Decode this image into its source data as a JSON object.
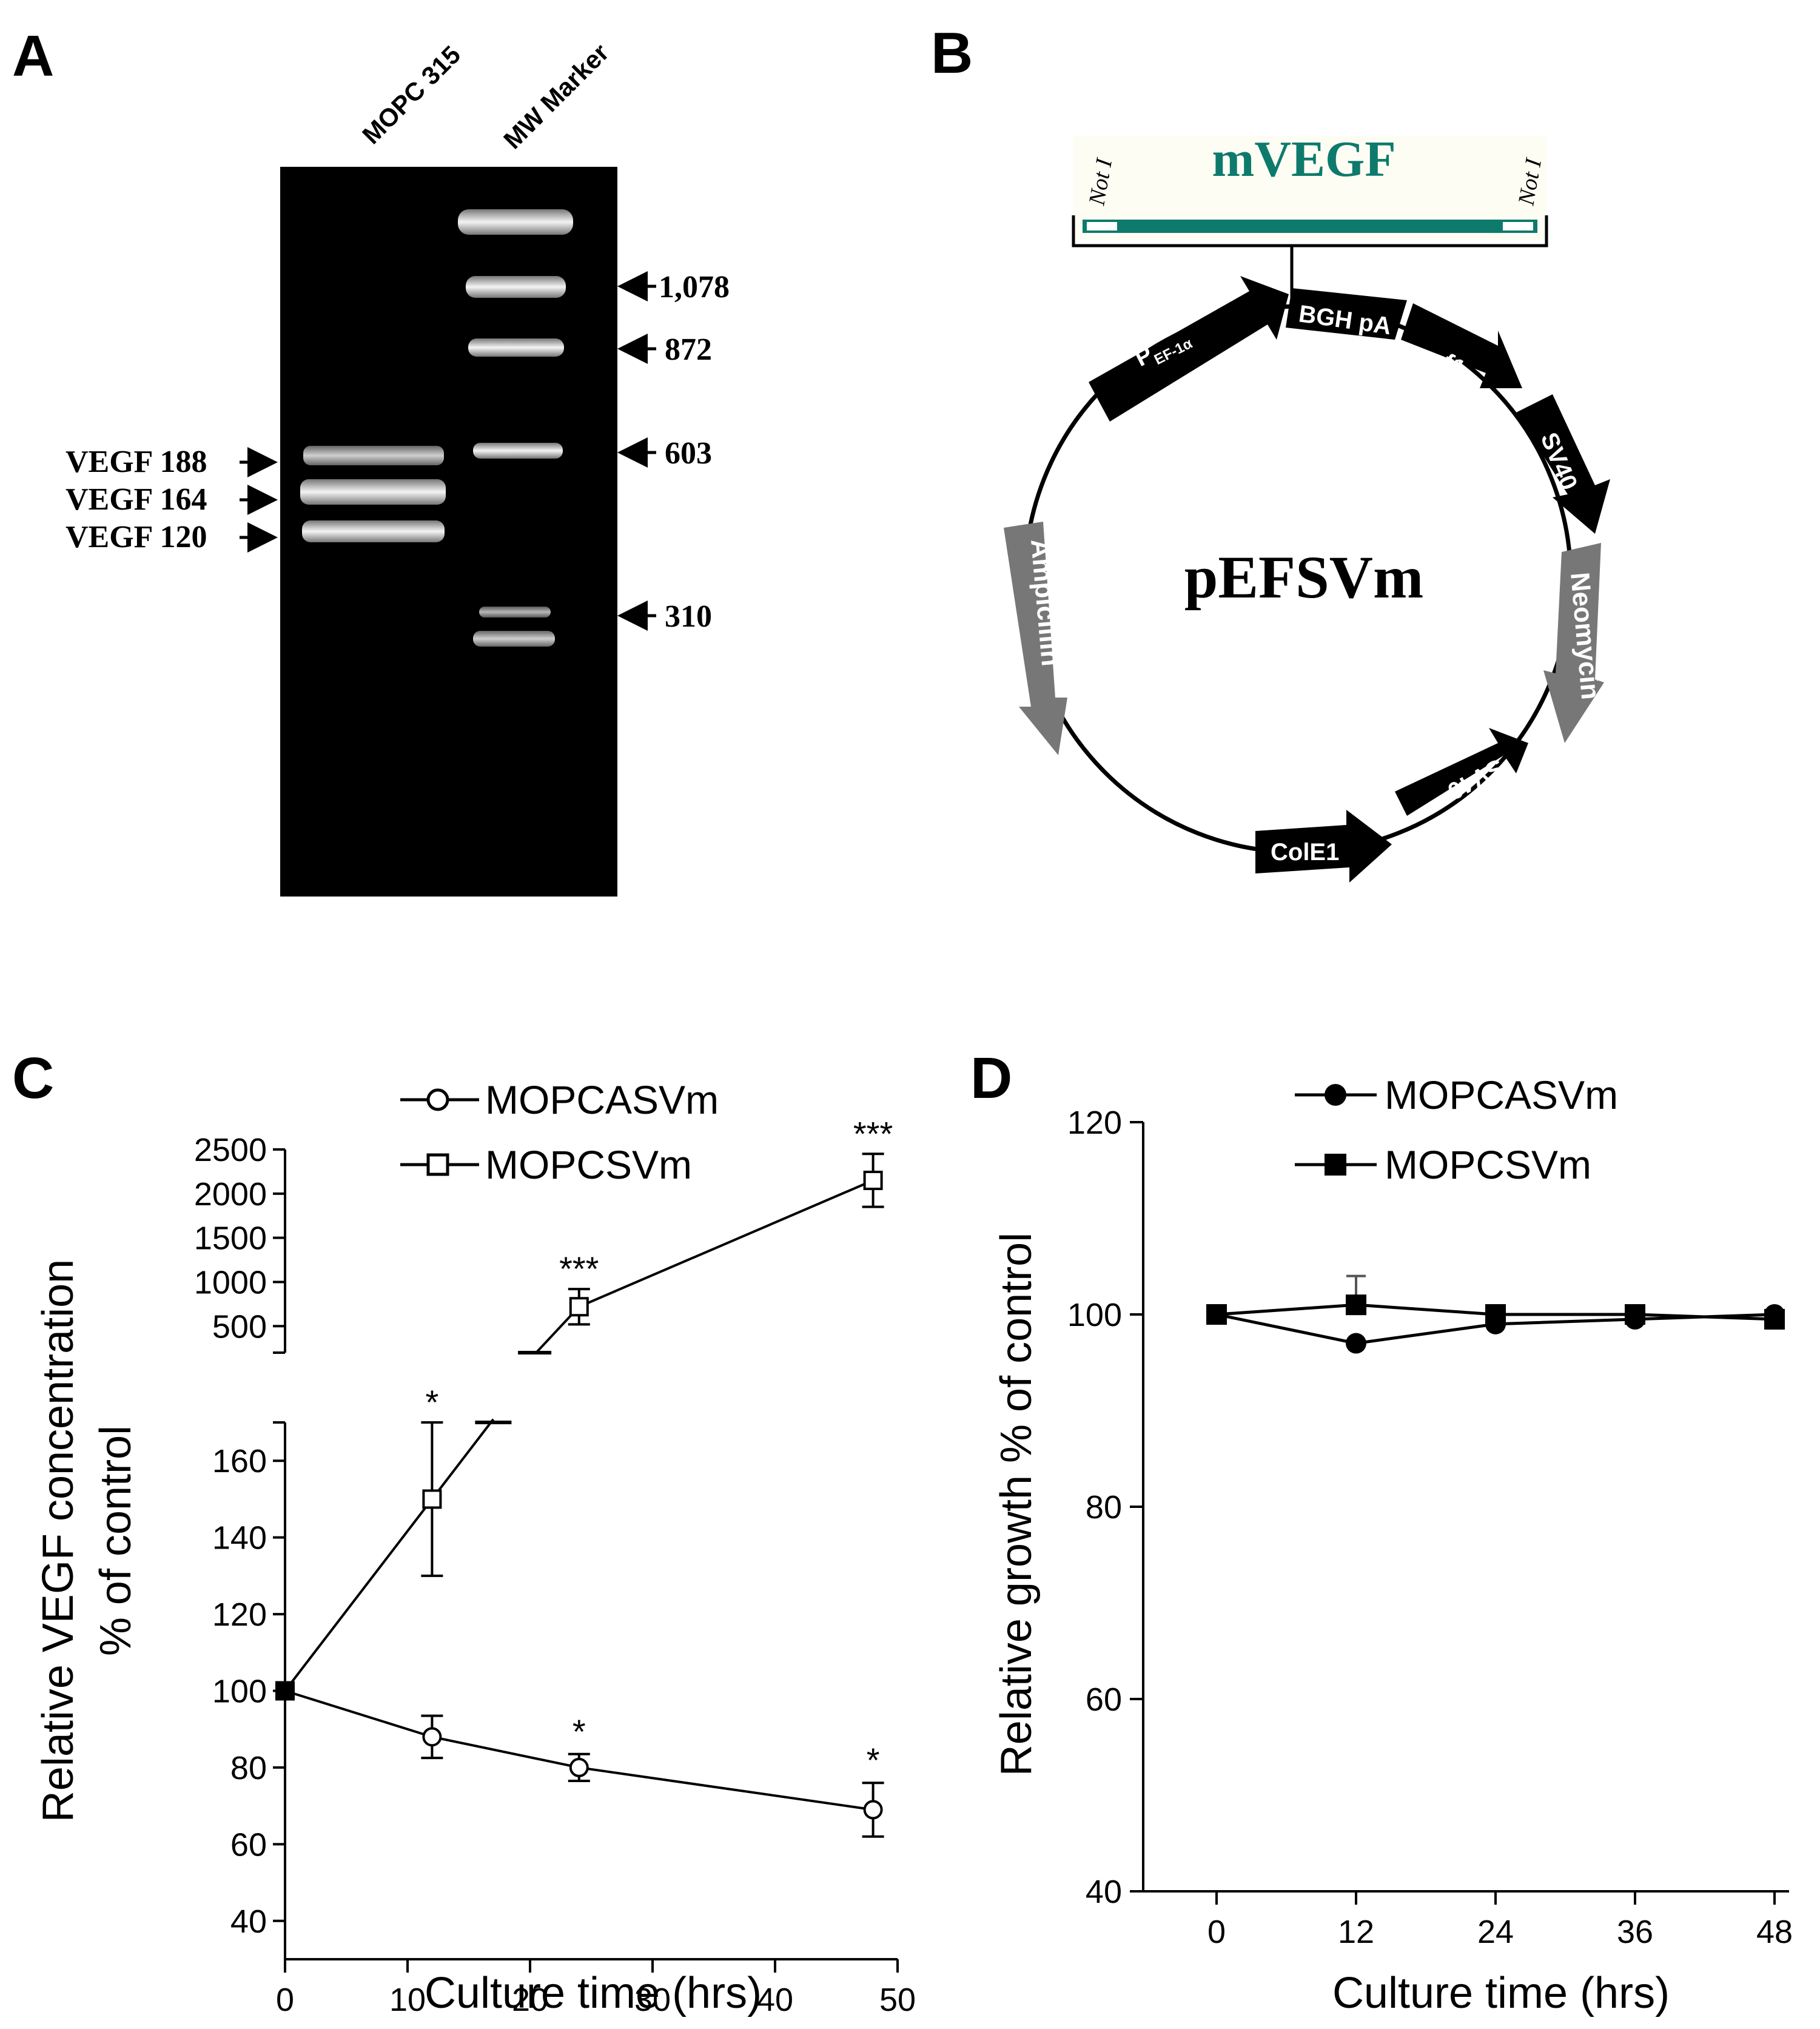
{
  "panels": {
    "a": {
      "label": "A",
      "lanes": [
        "MOPC 315",
        "MW Marker"
      ],
      "left_labels": [
        "VEGF 188",
        "VEGF 164",
        "VEGF 120"
      ],
      "marker_labels": [
        "1,078",
        "872",
        "603",
        "310"
      ]
    },
    "b": {
      "label": "B",
      "insert": {
        "name": "mVEGF",
        "left_site": "Not I",
        "right_site": "Not I"
      },
      "plasmid": "pEFSVm",
      "features": {
        "promoter": "P",
        "promoter_sub": "EF-1α",
        "bgh": "BGH pA",
        "f1": "f1",
        "sv40_a": "SV40",
        "neomycin": "Neomycin",
        "sv40_b": "SV40",
        "cole1": "ColE1",
        "ampicillin": "Ampicillin"
      }
    },
    "c": {
      "label": "C"
    },
    "d": {
      "label": "D"
    }
  },
  "chart_data": [
    {
      "panel": "C",
      "type": "line",
      "xlabel": "Culture time (hrs)",
      "ylabel_line1": "Relative VEGF concentration",
      "ylabel_line2": "% of control",
      "x_ticks": [
        0,
        10,
        20,
        30,
        40,
        50
      ],
      "xlim": [
        0,
        50
      ],
      "y_ticks_lower": [
        40,
        60,
        80,
        100,
        120,
        140,
        160
      ],
      "ylim_lower": [
        30,
        170
      ],
      "y_ticks_upper": [
        500,
        1000,
        1500,
        2000,
        2500
      ],
      "ylim_upper": [
        200,
        2500
      ],
      "axis_break": true,
      "series": [
        {
          "name": "MOPCASVm",
          "marker": "open-circle",
          "x": [
            0,
            12,
            24,
            48
          ],
          "y": [
            100,
            88,
            80,
            69
          ],
          "err": [
            0,
            5.5,
            3.5,
            7
          ],
          "significance": [
            "",
            "",
            "*",
            "*"
          ]
        },
        {
          "name": "MOPCSVm",
          "marker": "open-square",
          "x": [
            0,
            12,
            24,
            48
          ],
          "y": [
            100,
            150,
            720,
            2150
          ],
          "err": [
            0,
            20,
            200,
            300
          ],
          "significance": [
            "",
            "*",
            "***",
            "***"
          ]
        }
      ]
    },
    {
      "panel": "D",
      "type": "line",
      "xlabel": "Culture time (hrs)",
      "ylabel": "Relative growth % of control",
      "x": [
        0,
        12,
        24,
        36,
        48
      ],
      "x_ticks": [
        0,
        12,
        24,
        36,
        48
      ],
      "y_ticks": [
        40,
        60,
        80,
        100,
        120
      ],
      "ylim": [
        40,
        120
      ],
      "series": [
        {
          "name": "MOPCASVm",
          "marker": "filled-circle",
          "y": [
            100,
            97,
            99,
            99.5,
            100
          ],
          "err": [
            0,
            0,
            0,
            0,
            0
          ]
        },
        {
          "name": "MOPCSVm",
          "marker": "filled-square",
          "y": [
            100,
            101,
            100,
            100,
            99.5
          ],
          "err": [
            0,
            3,
            0,
            0,
            0
          ]
        }
      ]
    }
  ]
}
